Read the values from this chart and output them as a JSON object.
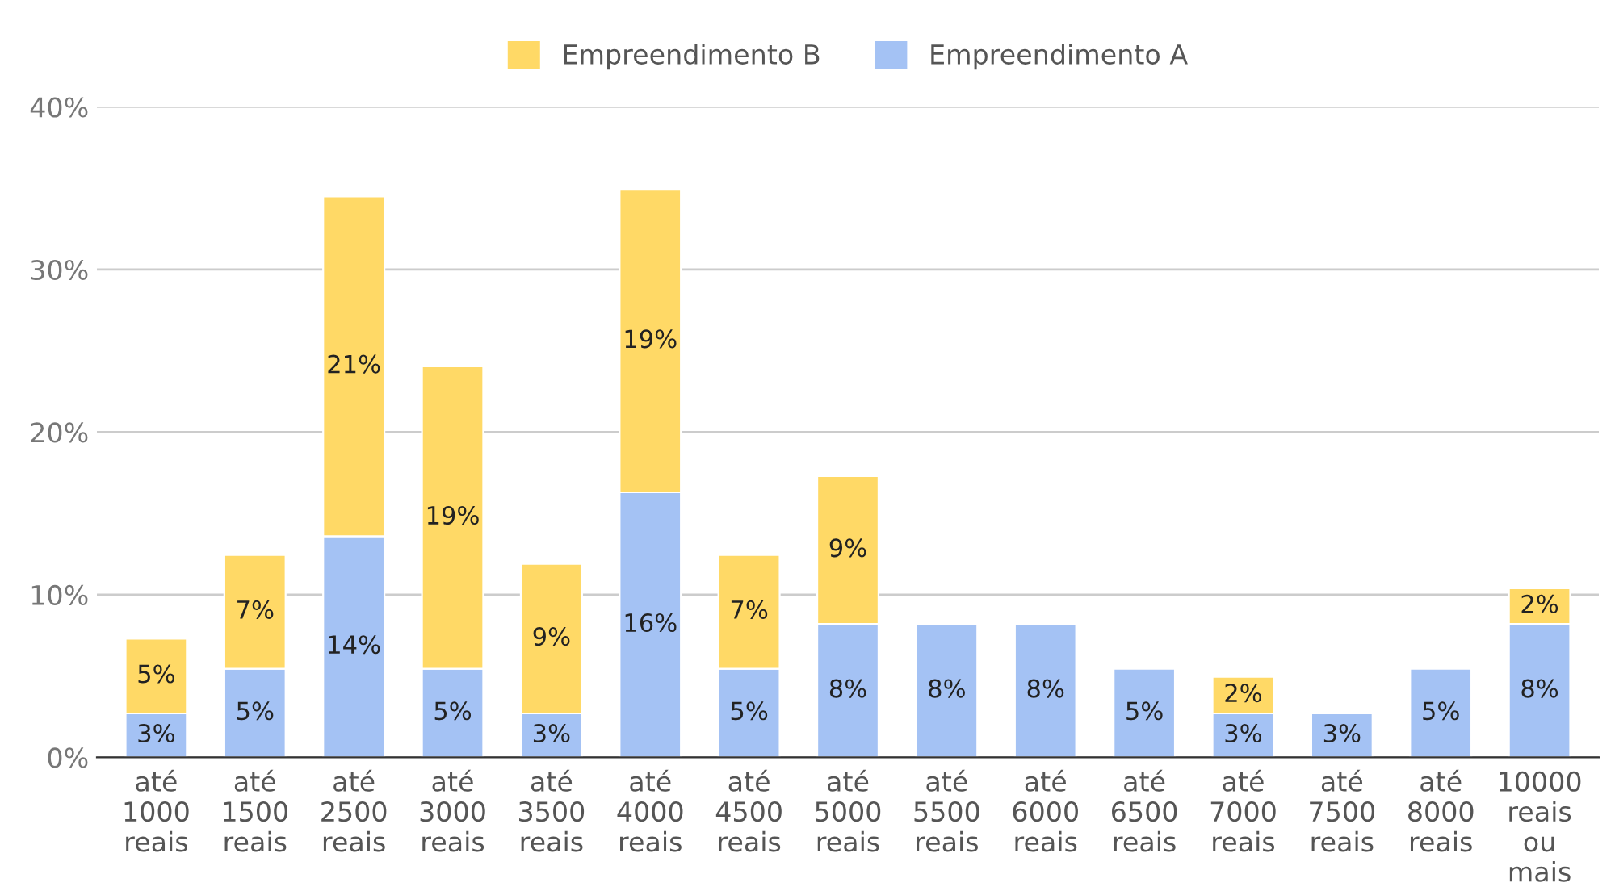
{
  "chart_data": {
    "type": "bar",
    "stacked": true,
    "categories": [
      "até\n1000\nreais",
      "até\n1500\nreais",
      "até\n2500\nreais",
      "até\n3000\nreais",
      "até\n3500\nreais",
      "até\n4000\nreais",
      "até\n4500\nreais",
      "até\n5000\nreais",
      "até\n5500\nreais",
      "até\n6000\nreais",
      "até\n6500\nreais",
      "até\n7000\nreais",
      "até\n7500\nreais",
      "até\n8000\nreais",
      "10000\nreais\nou\nmais"
    ],
    "series": [
      {
        "name": "Empreendimento A",
        "color": "#a4c2f4",
        "values": [
          2.7,
          5.45,
          13.6,
          5.45,
          2.7,
          16.3,
          5.45,
          8.2,
          8.2,
          8.2,
          5.45,
          2.7,
          2.7,
          5.45,
          8.2
        ],
        "value_labels": [
          "3%",
          "5%",
          "14%",
          "5%",
          "3%",
          "16%",
          "5%",
          "8%",
          "8%",
          "8%",
          "5%",
          "3%",
          "3%",
          "5%",
          "8%"
        ]
      },
      {
        "name": "Empreendimento B",
        "color": "#ffd966",
        "values": [
          4.6,
          7.0,
          20.9,
          18.6,
          9.2,
          18.6,
          7.0,
          9.1,
          null,
          null,
          null,
          2.25,
          null,
          null,
          2.2
        ],
        "value_labels": [
          "5%",
          "7%",
          "21%",
          "19%",
          "9%",
          "19%",
          "7%",
          "9%",
          null,
          null,
          null,
          "2%",
          null,
          null,
          "2%"
        ]
      }
    ],
    "ylim": [
      0,
      40
    ],
    "yticks": [
      {
        "value": 0,
        "label": "0%"
      },
      {
        "value": 10,
        "label": "10%"
      },
      {
        "value": 20,
        "label": "20%"
      },
      {
        "value": 30,
        "label": "30%"
      },
      {
        "value": 40,
        "label": "40%"
      }
    ],
    "grid": "y",
    "legend": "top"
  }
}
